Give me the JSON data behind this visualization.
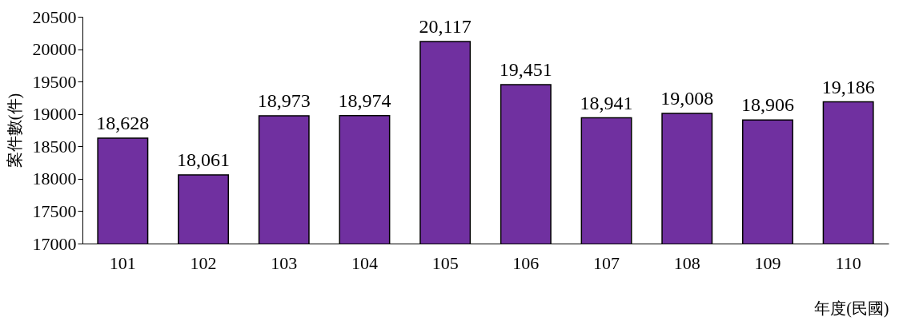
{
  "chart_data": {
    "type": "bar",
    "xlabel": "年度(民國)",
    "ylabel": "案件數(件)",
    "categories": [
      "101",
      "102",
      "103",
      "104",
      "105",
      "106",
      "107",
      "108",
      "109",
      "110"
    ],
    "values": [
      18628,
      18061,
      18973,
      18974,
      20117,
      19451,
      18941,
      19008,
      18906,
      19186
    ],
    "value_labels": [
      "18,628",
      "18,061",
      "18,973",
      "18,974",
      "20,117",
      "19,451",
      "18,941",
      "19,008",
      "18,906",
      "19,186"
    ],
    "color": "#7030a0",
    "ylim": [
      17000,
      20500
    ],
    "yticks": [
      17000,
      17500,
      18000,
      18500,
      19000,
      19500,
      20000,
      20500
    ],
    "grid": false
  }
}
